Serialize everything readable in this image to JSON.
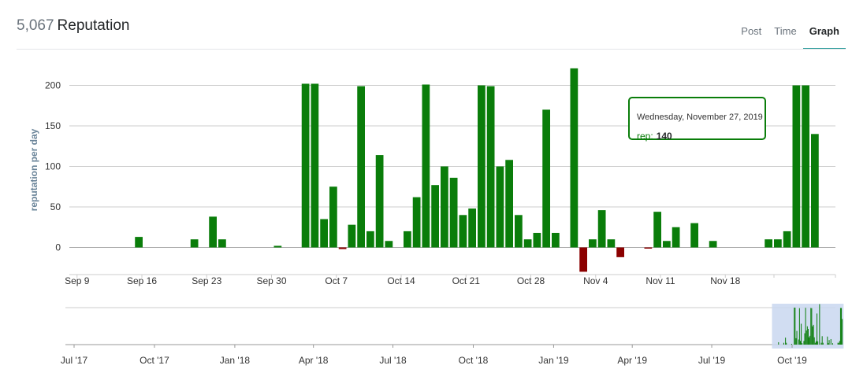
{
  "header": {
    "rep_count": "5,067",
    "rep_label": "Reputation",
    "tabs": [
      {
        "label": "Post",
        "active": false
      },
      {
        "label": "Time",
        "active": false
      },
      {
        "label": "Graph",
        "active": true
      }
    ]
  },
  "colors": {
    "positive": "#0a7d0a",
    "negative": "#8b0000",
    "grid": "#cccccc",
    "navigator_selection": "#c9d7f0",
    "tab_underline": "#2d9c9c"
  },
  "chart_data": {
    "type": "bar",
    "ylabel": "reputation per day",
    "ylim": [
      -30,
      210
    ],
    "yticks": [
      0,
      50,
      100,
      150,
      200
    ],
    "x_start": "2019-09-08",
    "x_tick_labels": [
      "Sep 9",
      "Sep 16",
      "Sep 23",
      "Sep 30",
      "Oct 7",
      "Oct 14",
      "Oct 21",
      "Oct 28",
      "Nov 4",
      "Nov 11",
      "Nov 18"
    ],
    "x_tick_dates": [
      "2019-09-09",
      "2019-09-16",
      "2019-09-23",
      "2019-09-30",
      "2019-10-07",
      "2019-10-14",
      "2019-10-21",
      "2019-10-28",
      "2019-11-04",
      "2019-11-11",
      "2019-11-18"
    ],
    "series": [
      {
        "values": [
          {
            "date": "2019-09-15",
            "value": 13
          },
          {
            "date": "2019-09-21",
            "value": 10
          },
          {
            "date": "2019-09-23",
            "value": 38
          },
          {
            "date": "2019-09-24",
            "value": 10
          },
          {
            "date": "2019-09-30",
            "value": 2
          },
          {
            "date": "2019-10-03",
            "value": 202
          },
          {
            "date": "2019-10-04",
            "value": 202
          },
          {
            "date": "2019-10-05",
            "value": 35
          },
          {
            "date": "2019-10-06",
            "value": 75
          },
          {
            "date": "2019-10-07",
            "value": -2
          },
          {
            "date": "2019-10-08",
            "value": 28
          },
          {
            "date": "2019-10-09",
            "value": 199
          },
          {
            "date": "2019-10-10",
            "value": 20
          },
          {
            "date": "2019-10-11",
            "value": 114
          },
          {
            "date": "2019-10-12",
            "value": 8
          },
          {
            "date": "2019-10-14",
            "value": 20
          },
          {
            "date": "2019-10-15",
            "value": 62
          },
          {
            "date": "2019-10-16",
            "value": 201
          },
          {
            "date": "2019-10-17",
            "value": 77
          },
          {
            "date": "2019-10-18",
            "value": 100
          },
          {
            "date": "2019-10-19",
            "value": 86
          },
          {
            "date": "2019-10-20",
            "value": 40
          },
          {
            "date": "2019-10-21",
            "value": 48
          },
          {
            "date": "2019-10-22",
            "value": 200
          },
          {
            "date": "2019-10-23",
            "value": 199
          },
          {
            "date": "2019-10-24",
            "value": 100
          },
          {
            "date": "2019-10-25",
            "value": 108
          },
          {
            "date": "2019-10-26",
            "value": 40
          },
          {
            "date": "2019-10-27",
            "value": 10
          },
          {
            "date": "2019-10-28",
            "value": 18
          },
          {
            "date": "2019-10-29",
            "value": 170
          },
          {
            "date": "2019-10-30",
            "value": 18
          },
          {
            "date": "2019-11-01",
            "value": 221
          },
          {
            "date": "2019-11-02",
            "value": -30
          },
          {
            "date": "2019-11-03",
            "value": 10
          },
          {
            "date": "2019-11-04",
            "value": 46
          },
          {
            "date": "2019-11-05",
            "value": 10
          },
          {
            "date": "2019-11-06",
            "value": -12
          },
          {
            "date": "2019-11-09",
            "value": -1
          },
          {
            "date": "2019-11-10",
            "value": 44
          },
          {
            "date": "2019-11-11",
            "value": 8
          },
          {
            "date": "2019-11-12",
            "value": 25
          },
          {
            "date": "2019-11-14",
            "value": 30
          },
          {
            "date": "2019-11-16",
            "value": 8
          },
          {
            "date": "2019-11-22",
            "value": 10
          },
          {
            "date": "2019-11-23",
            "value": 10
          },
          {
            "date": "2019-11-24",
            "value": 20
          },
          {
            "date": "2019-11-25",
            "value": 200
          },
          {
            "date": "2019-11-26",
            "value": 200
          },
          {
            "date": "2019-11-27",
            "value": 140
          }
        ]
      }
    ],
    "tooltip": {
      "date": "Wednesday, November 27, 2019",
      "key": "rep:",
      "value": "140"
    },
    "navigator": {
      "x_tick_labels": [
        "Jul '17",
        "Oct '17",
        "Jan '18",
        "Apr '18",
        "Jul '18",
        "Oct '18",
        "Jan '19",
        "Apr '19",
        "Jul '19",
        "Oct '19"
      ],
      "x_tick_dates": [
        "2017-07-01",
        "2017-10-01",
        "2018-01-01",
        "2018-04-01",
        "2018-07-01",
        "2018-10-01",
        "2019-01-01",
        "2019-04-01",
        "2019-07-01",
        "2019-10-01"
      ],
      "selection": [
        "2019-09-08",
        "2019-11-29"
      ]
    }
  }
}
